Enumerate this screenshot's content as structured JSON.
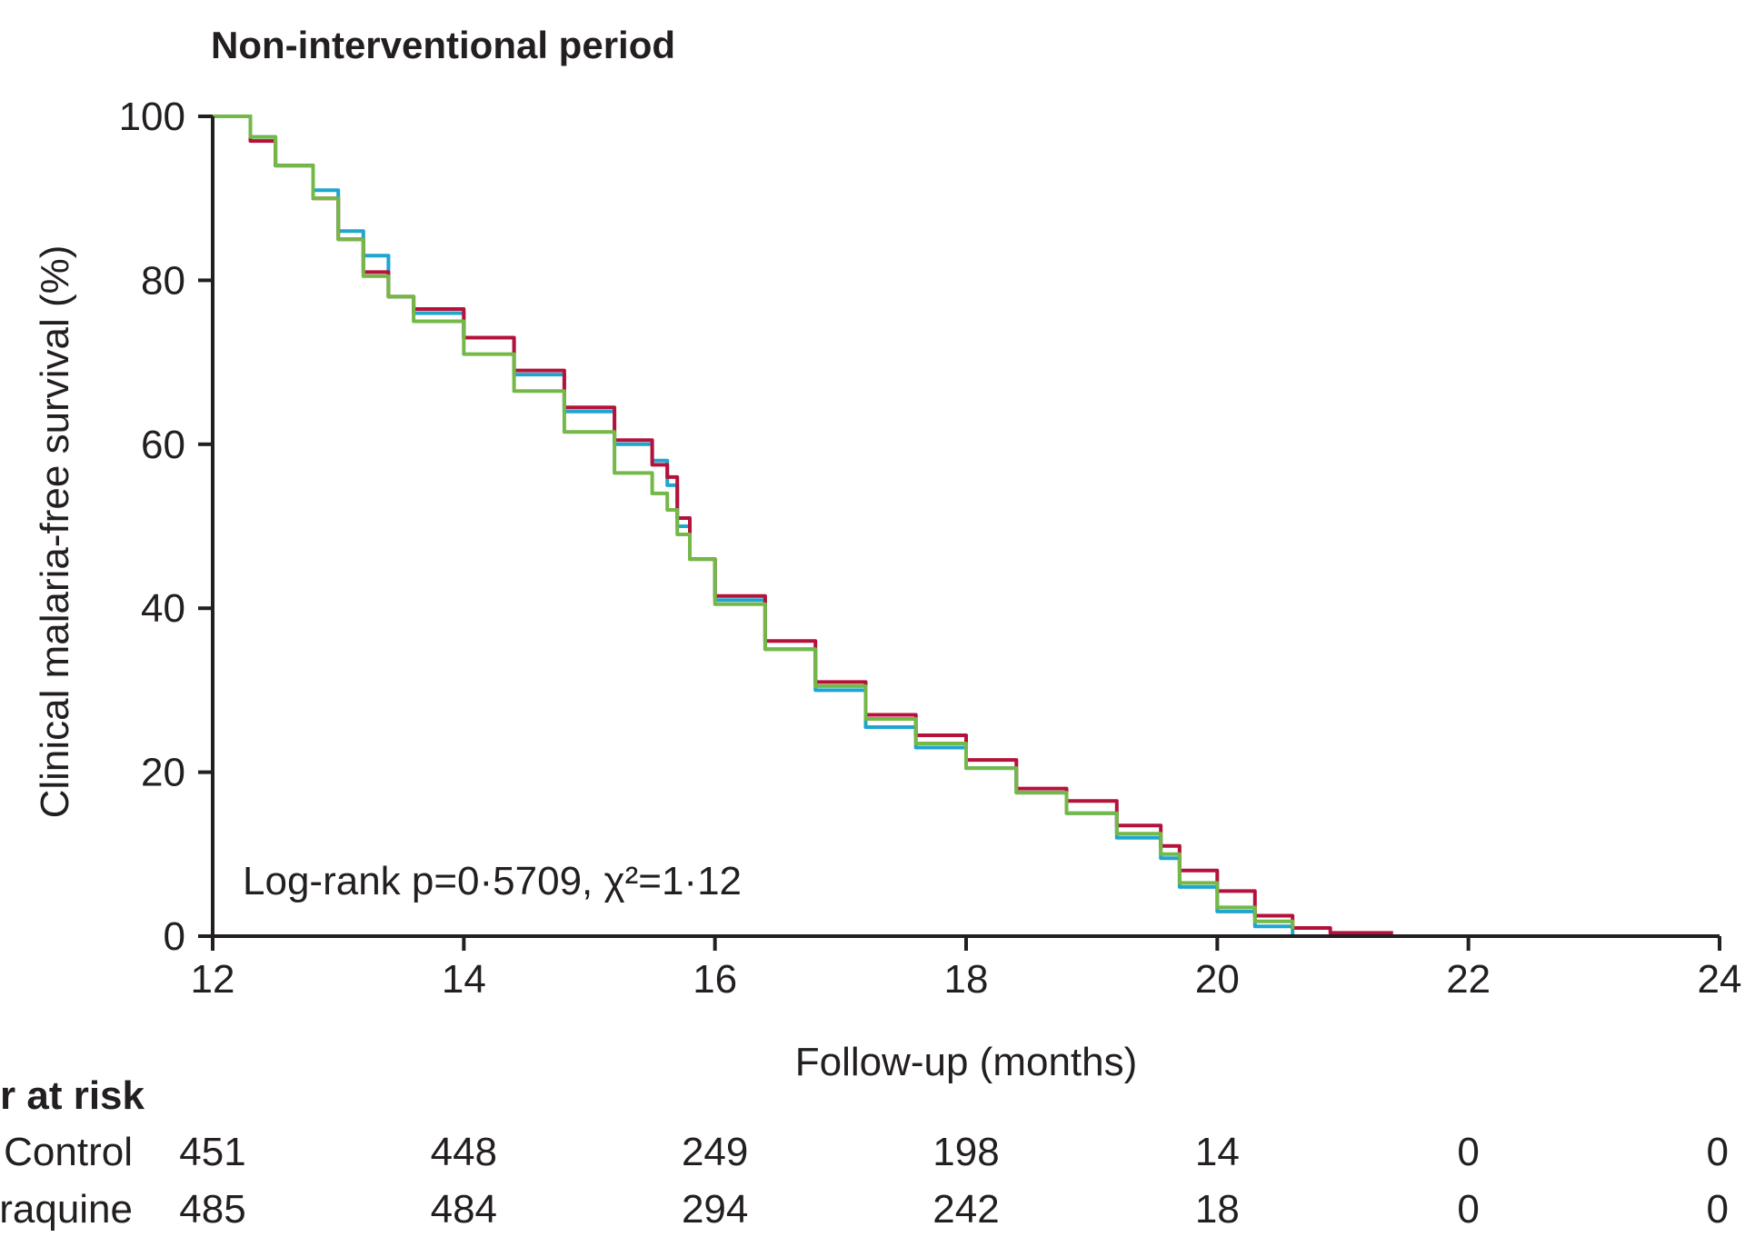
{
  "chart_data": {
    "type": "line",
    "title": "Non-interventional period",
    "xlabel": "Follow-up (months)",
    "ylabel": "Clinical malaria-free survival (%)",
    "xlim": [
      12,
      24
    ],
    "ylim": [
      0,
      100
    ],
    "xticks": [
      "12",
      "14",
      "16",
      "18",
      "20",
      "22",
      "24"
    ],
    "yticks": [
      "0",
      "20",
      "40",
      "60",
      "80",
      "100"
    ],
    "annotation": "Log-rank p=0·5709, χ²=1·12",
    "series": [
      {
        "name": "blue",
        "color": "#1ea6cf",
        "x": [
          12.0,
          12.3,
          12.5,
          12.8,
          13.0,
          13.2,
          13.4,
          13.6,
          14.0,
          14.4,
          14.8,
          15.2,
          15.5,
          15.62,
          15.7,
          15.8,
          16.0,
          16.4,
          16.8,
          17.2,
          17.6,
          18.0,
          18.4,
          18.8,
          19.2,
          19.55,
          19.7,
          20.0,
          20.3,
          20.6
        ],
        "y": [
          100,
          97.5,
          94,
          91,
          86,
          83,
          78,
          76,
          73,
          68.5,
          64,
          60,
          58,
          55,
          50,
          46,
          41,
          35,
          30,
          25.5,
          23,
          20.5,
          17.5,
          15,
          12,
          9.5,
          6,
          3,
          1.2,
          0
        ]
      },
      {
        "name": "red",
        "color": "#b5123b",
        "x": [
          12.0,
          12.3,
          12.5,
          12.8,
          13.0,
          13.2,
          13.4,
          13.6,
          14.0,
          14.4,
          14.8,
          15.2,
          15.5,
          15.62,
          15.7,
          15.8,
          16.0,
          16.4,
          16.8,
          17.2,
          17.6,
          18.0,
          18.4,
          18.8,
          19.2,
          19.55,
          19.7,
          20.0,
          20.3,
          20.6,
          20.9,
          21.4
        ],
        "y": [
          100,
          97,
          94,
          90,
          85,
          81,
          78,
          76.5,
          73,
          69,
          64.5,
          60.5,
          57.5,
          56,
          51,
          46,
          41.5,
          36,
          31,
          27,
          24.5,
          21.5,
          18,
          16.5,
          13.5,
          11,
          8,
          5.5,
          2.5,
          1.0,
          0.4,
          0.4
        ]
      },
      {
        "name": "green",
        "color": "#74b848",
        "x": [
          12.0,
          12.3,
          12.5,
          12.8,
          13.0,
          13.2,
          13.4,
          13.6,
          14.0,
          14.4,
          14.8,
          15.2,
          15.5,
          15.62,
          15.7,
          15.8,
          16.0,
          16.4,
          16.8,
          17.2,
          17.6,
          18.0,
          18.4,
          18.8,
          19.2,
          19.55,
          19.7,
          20.0,
          20.3,
          20.6
        ],
        "y": [
          100,
          97.5,
          94,
          90,
          85,
          80.5,
          78,
          75,
          71,
          66.5,
          61.5,
          56.5,
          54,
          52,
          49,
          46,
          40.5,
          35,
          30.5,
          26.5,
          23.5,
          20.5,
          17.5,
          15,
          12.5,
          10,
          6.5,
          3.5,
          1.8,
          0.8
        ]
      }
    ],
    "risk_table": {
      "header": "r at risk",
      "rows": [
        {
          "label": "Control",
          "values": [
            "451",
            "448",
            "249",
            "198",
            "14",
            "0",
            "0"
          ]
        },
        {
          "label": "raquine",
          "values": [
            "485",
            "484",
            "294",
            "242",
            "18",
            "0",
            "0"
          ]
        }
      ]
    }
  }
}
